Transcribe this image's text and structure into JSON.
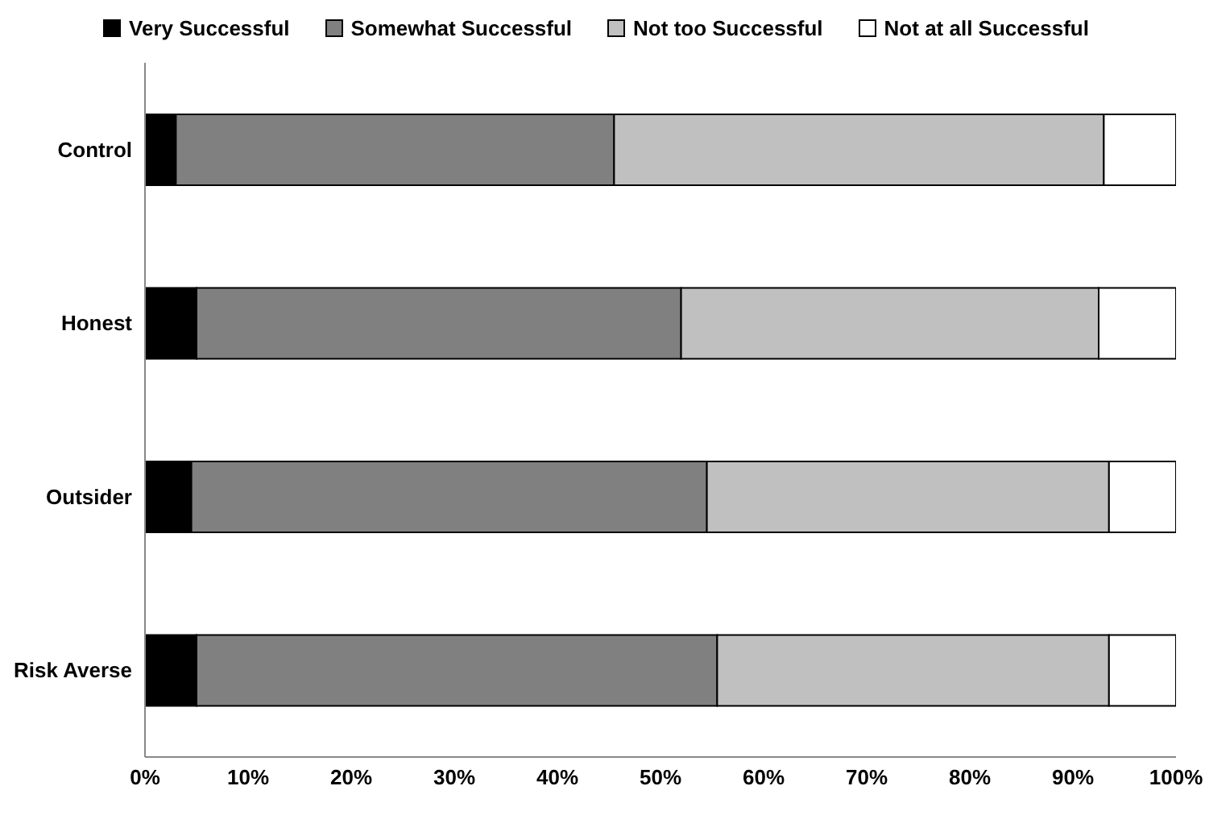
{
  "chart_data": {
    "type": "bar",
    "orientation": "horizontal",
    "stacked": true,
    "categories": [
      "Control",
      "Honest",
      "Outsider",
      "Risk Averse"
    ],
    "series": [
      {
        "name": "Very Successful",
        "color": "#000000",
        "values": [
          3,
          5,
          4.5,
          5
        ]
      },
      {
        "name": "Somewhat Successful",
        "color": "#808080",
        "values": [
          42.5,
          47,
          50,
          50.5
        ]
      },
      {
        "name": "Not too Successful",
        "color": "#c0c0c0",
        "values": [
          47.5,
          40.5,
          39,
          38
        ]
      },
      {
        "name": "Not at all Successful",
        "color": "#ffffff",
        "values": [
          7,
          7.5,
          6.5,
          6.5
        ]
      }
    ],
    "xlim": [
      0,
      100
    ],
    "xticks": [
      {
        "value": 0,
        "label": "0%"
      },
      {
        "value": 10,
        "label": "10%"
      },
      {
        "value": 20,
        "label": "20%"
      },
      {
        "value": 30,
        "label": "30%"
      },
      {
        "value": 40,
        "label": "40%"
      },
      {
        "value": 50,
        "label": "50%"
      },
      {
        "value": 60,
        "label": "60%"
      },
      {
        "value": 70,
        "label": "70%"
      },
      {
        "value": 80,
        "label": "80%"
      },
      {
        "value": 90,
        "label": "90%"
      },
      {
        "value": 100,
        "label": "100%"
      }
    ],
    "grid": false,
    "legend": "top"
  }
}
